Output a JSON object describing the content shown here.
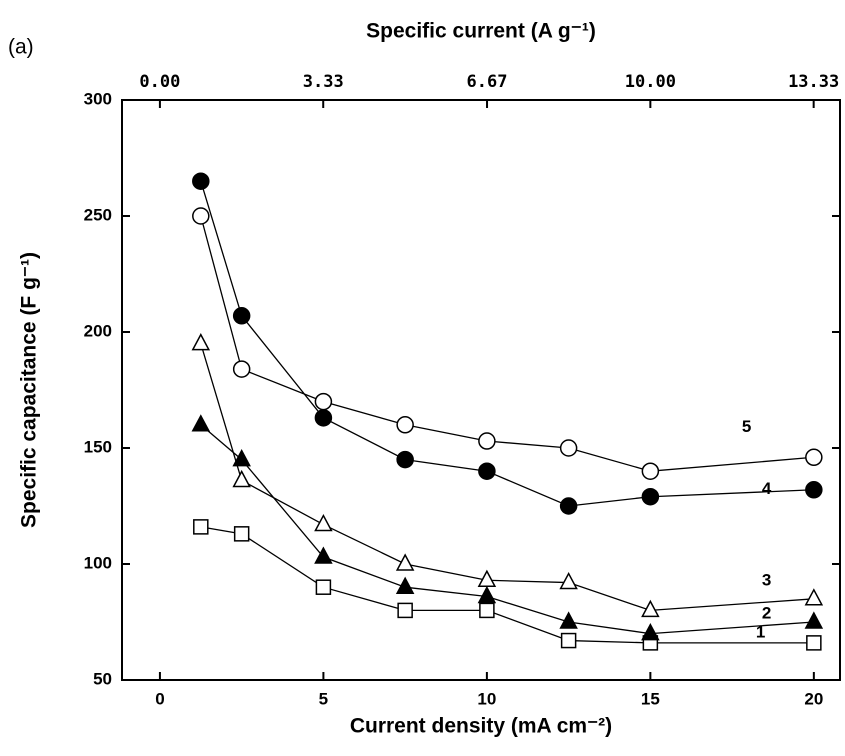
{
  "chart_data": {
    "type": "line",
    "panel_label": "(a)",
    "xlabel": "Current density  (mA cm⁻²)",
    "ylabel": "Specific capacitance  (F g⁻¹)",
    "x2label": "Specific current  (A g⁻¹)",
    "x": [
      1.25,
      2.5,
      5,
      7.5,
      10,
      12.5,
      15,
      20
    ],
    "xlim": [
      -1.16,
      20.8
    ],
    "xticks": [
      0,
      5,
      10,
      15,
      20
    ],
    "x2lim": [
      -0.773,
      13.867
    ],
    "x2ticks": [
      {
        "value": 0,
        "label": "0.00"
      },
      3.33,
      6.67,
      {
        "value": 10,
        "label": "10.00"
      },
      13.33
    ],
    "ylim": [
      50,
      300
    ],
    "yticks": [
      50,
      100,
      150,
      200,
      250,
      300
    ],
    "series": [
      {
        "name": "1",
        "color": "#000000",
        "marker": "square",
        "filled": false,
        "values": [
          116,
          113,
          90,
          80,
          80,
          67,
          66,
          66
        ]
      },
      {
        "name": "2",
        "color": "#000000",
        "marker": "triangle",
        "filled": true,
        "values": [
          160,
          145,
          103,
          90,
          86,
          75,
          70,
          75
        ]
      },
      {
        "name": "3",
        "color": "#000000",
        "marker": "triangle",
        "filled": false,
        "values": [
          195,
          136,
          117,
          100,
          93,
          92,
          80,
          85
        ]
      },
      {
        "name": "4",
        "color": "#000000",
        "marker": "circle",
        "filled": true,
        "values": [
          265,
          207,
          163,
          145,
          140,
          125,
          129,
          132
        ]
      },
      {
        "name": "5",
        "color": "#000000",
        "marker": "circle",
        "filled": false,
        "values": [
          250,
          184,
          170,
          160,
          153,
          150,
          140,
          146
        ]
      }
    ]
  }
}
